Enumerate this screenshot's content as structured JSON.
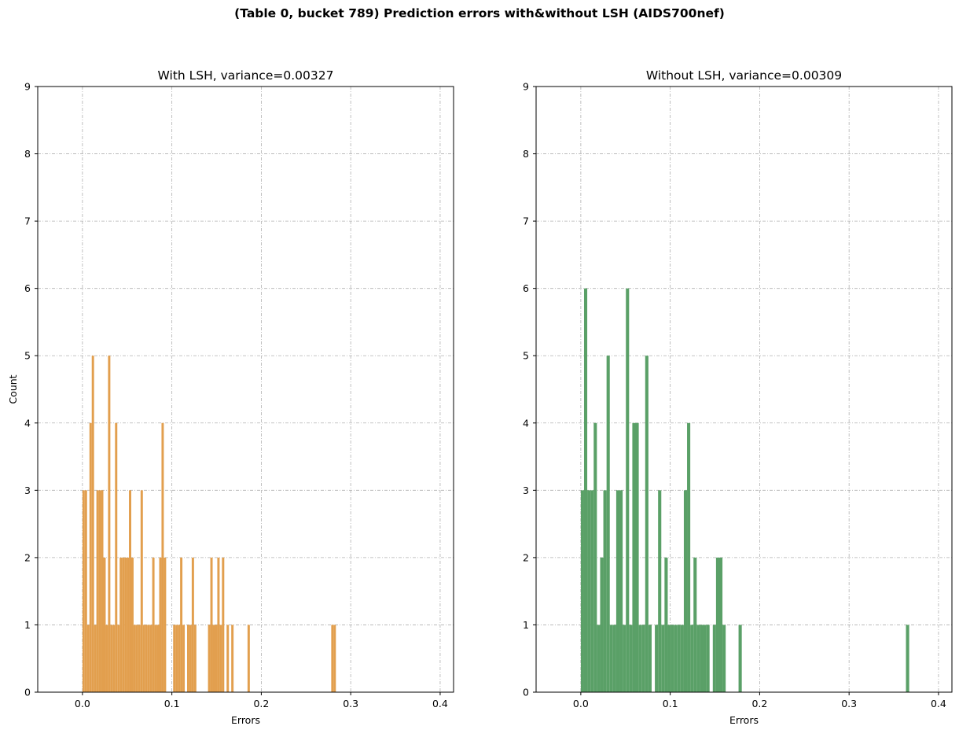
{
  "suptitle": "(Table 0, bucket 789) Prediction errors with&without LSH (AIDS700nef)",
  "chart_data": [
    {
      "type": "bar",
      "title": "With LSH, variance=0.00327",
      "xlabel": "Errors",
      "ylabel": "Count",
      "xlim": [
        -0.05,
        0.415
      ],
      "ylim": [
        0,
        9
      ],
      "xticks": [
        "0.0",
        "0.1",
        "0.2",
        "0.3",
        "0.4"
      ],
      "yticks": [
        "0",
        "1",
        "2",
        "3",
        "4",
        "5",
        "6",
        "7",
        "8",
        "9"
      ],
      "grid": true,
      "color": "#e29f4e",
      "bin_width": 0.0026,
      "bins_x": [
        0.0,
        0.0026,
        0.0052,
        0.0078,
        0.0104,
        0.013,
        0.0156,
        0.0182,
        0.0208,
        0.0234,
        0.026,
        0.0286,
        0.0312,
        0.0338,
        0.0364,
        0.039,
        0.0416,
        0.0442,
        0.0468,
        0.0494,
        0.052,
        0.0546,
        0.0572,
        0.0598,
        0.0624,
        0.065,
        0.0676,
        0.0702,
        0.0728,
        0.0754,
        0.078,
        0.0806,
        0.0832,
        0.0858,
        0.0884,
        0.091,
        0.1014,
        0.104,
        0.1066,
        0.1092,
        0.1118,
        0.117,
        0.1196,
        0.1222,
        0.1248,
        0.1404,
        0.143,
        0.1456,
        0.1482,
        0.1508,
        0.1534,
        0.156,
        0.1612,
        0.1664,
        0.1846,
        0.2782,
        0.2808
      ],
      "counts": [
        3,
        3,
        1,
        4,
        5,
        1,
        3,
        3,
        3,
        2,
        1,
        5,
        1,
        1,
        4,
        1,
        2,
        2,
        2,
        2,
        3,
        2,
        1,
        1,
        1,
        3,
        1,
        1,
        1,
        1,
        2,
        1,
        1,
        2,
        4,
        2,
        1,
        1,
        1,
        2,
        1,
        1,
        1,
        2,
        1,
        1,
        2,
        1,
        1,
        2,
        1,
        2,
        1,
        1,
        1,
        1,
        1
      ]
    },
    {
      "type": "bar",
      "title": "Without LSH, variance=0.00309",
      "xlabel": "Errors",
      "ylabel": "",
      "xlim": [
        -0.05,
        0.415
      ],
      "ylim": [
        0,
        9
      ],
      "xticks": [
        "0.0",
        "0.1",
        "0.2",
        "0.3",
        "0.4"
      ],
      "yticks": [
        "0",
        "1",
        "2",
        "3",
        "4",
        "5",
        "6",
        "7",
        "8",
        "9"
      ],
      "grid": true,
      "color": "#5aa067",
      "bin_width": 0.0036,
      "bins_x": [
        0.0,
        0.0036,
        0.0072,
        0.0108,
        0.0144,
        0.018,
        0.0216,
        0.0252,
        0.0288,
        0.0324,
        0.036,
        0.0396,
        0.0432,
        0.0468,
        0.0504,
        0.054,
        0.0576,
        0.0612,
        0.0648,
        0.0684,
        0.072,
        0.0756,
        0.0828,
        0.0864,
        0.09,
        0.0936,
        0.0972,
        0.1008,
        0.1044,
        0.108,
        0.1116,
        0.1152,
        0.1188,
        0.1224,
        0.126,
        0.1296,
        0.1332,
        0.1368,
        0.1404,
        0.1476,
        0.1512,
        0.1548,
        0.1584,
        0.1764,
        0.3636
      ],
      "counts": [
        3,
        6,
        3,
        3,
        4,
        1,
        2,
        3,
        5,
        1,
        1,
        3,
        3,
        1,
        6,
        1,
        4,
        4,
        1,
        1,
        5,
        1,
        1,
        3,
        1,
        2,
        1,
        1,
        1,
        1,
        1,
        3,
        4,
        1,
        2,
        1,
        1,
        1,
        1,
        1,
        2,
        2,
        1,
        1,
        1
      ]
    }
  ]
}
